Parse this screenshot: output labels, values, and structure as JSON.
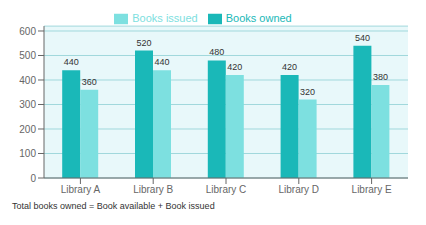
{
  "chart_data": {
    "type": "bar",
    "categories": [
      "Library A",
      "Library B",
      "Library C",
      "Library D",
      "Library E"
    ],
    "series": [
      {
        "name": "Books owned",
        "color": "#1ab8b8",
        "values": [
          440,
          520,
          480,
          420,
          540
        ]
      },
      {
        "name": "Books issued",
        "color": "#7de0e0",
        "values": [
          360,
          440,
          420,
          320,
          380
        ]
      }
    ],
    "ylim": [
      0,
      620
    ],
    "yticks": [
      0,
      100,
      200,
      300,
      400,
      500,
      600
    ],
    "grid": true,
    "legend": "top",
    "data_labels": true,
    "annotations": [
      "Total books owned = Book available + Book issued"
    ]
  }
}
